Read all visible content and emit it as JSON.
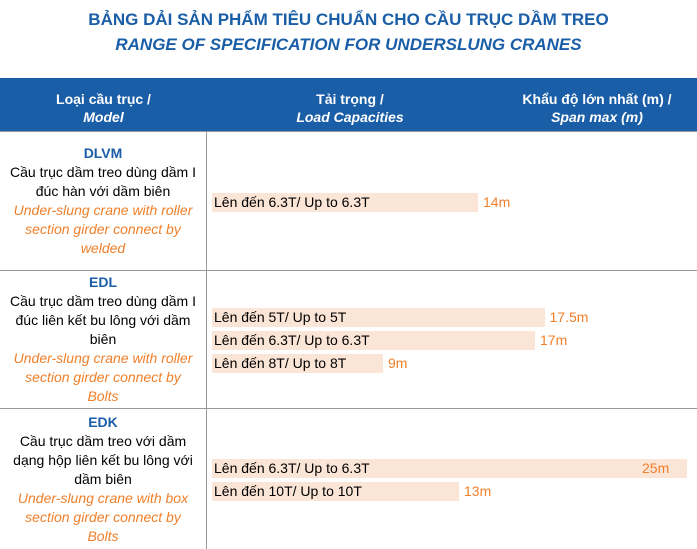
{
  "title_vi": "BẢNG DẢI SẢN PHẨM TIÊU CHUẨN CHO CẦU TRỤC DẦM TREO",
  "title_en": "RANGE OF SPECIFICATION FOR UNDERSLUNG CRANES",
  "header": [
    {
      "vi": "Loại cầu trục /",
      "en": "Model"
    },
    {
      "vi": "Tải trọng /",
      "en": "Load Capacities"
    },
    {
      "vi": "Khẩu độ lớn nhất (m) /",
      "en": "Span max (m)"
    }
  ],
  "rows": [
    {
      "model": "DLVM",
      "description": "Cầu trục dầm treo dùng dầm I đúc hàn với dầm biên",
      "description_en": "Under-slung crane with roller section girder connect by welded",
      "specs": [
        {
          "capacity": "Lên đến 6.3T/ Up to 6.3T",
          "span": {
            "value": 14,
            "label": "14m"
          }
        }
      ]
    },
    {
      "model": "EDL",
      "description": "Cầu trục dầm treo dùng dầm I đúc liên kết bu lông với dầm biên",
      "description_en": "Under-slung crane with roller section girder connect by Bolts",
      "specs": [
        {
          "capacity": "Lên đến 5T/ Up to 5T",
          "span": {
            "value": 17.5,
            "label": "17.5m"
          }
        },
        {
          "capacity": "Lên đến 6.3T/ Up to 6.3T",
          "span": {
            "value": 17,
            "label": "17m"
          }
        },
        {
          "capacity": "Lên đến 8T/ Up to 8T",
          "span": {
            "value": 9,
            "label": "9m"
          }
        }
      ]
    },
    {
      "model": "EDK",
      "description": "Cầu trục dầm treo với dầm dạng hộp liên kết bu lông với dầm biên",
      "description_en": "Under-slung crane with box section girder connect by Bolts",
      "specs": [
        {
          "capacity": "Lên đến 6.3T/ Up to 6.3T",
          "span": {
            "value": 25,
            "label": "25m"
          }
        },
        {
          "capacity": "Lên đến 10T/ Up to 10T",
          "span": {
            "value": 13,
            "label": "13m"
          }
        }
      ]
    }
  ]
}
